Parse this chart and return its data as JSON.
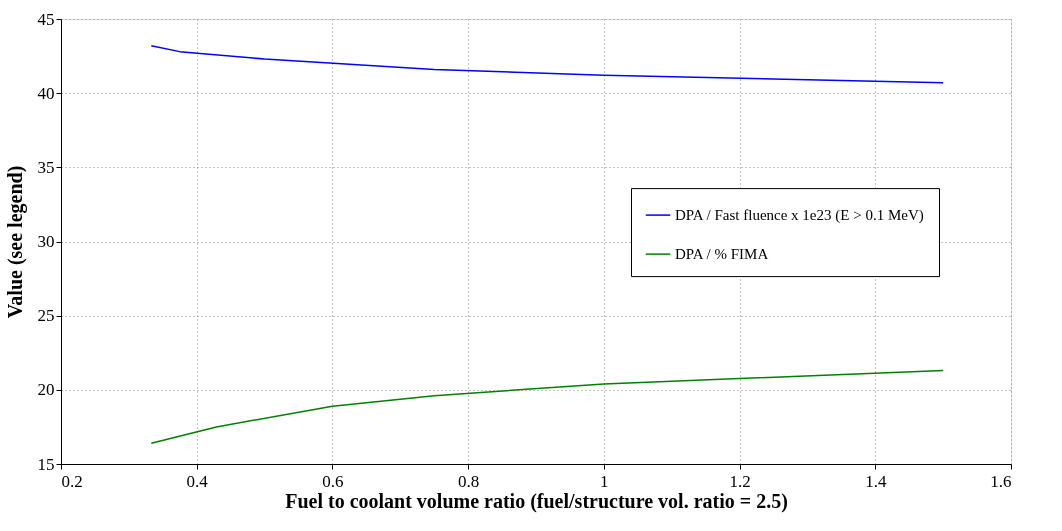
{
  "chart_data": {
    "type": "line",
    "xlabel": "Fuel to coolant volume ratio (fuel/structure vol. ratio = 2.5)",
    "ylabel": "Value (see legend)",
    "xlim": [
      0.2,
      1.6
    ],
    "xticks": [
      0.2,
      0.4,
      0.6,
      0.8,
      1,
      1.2,
      1.4,
      1.6
    ],
    "ylim": [
      15,
      45
    ],
    "yticks": [
      15,
      20,
      25,
      30,
      35,
      40,
      45
    ],
    "grid": true,
    "legend": "right",
    "line_style": "solid",
    "marker": "none",
    "series": [
      {
        "name": "DPA / Fast fluence x 1e23 (E > 0.1 MeV)",
        "color": "#0000ff",
        "x": [
          0.333,
          0.375,
          0.5,
          0.75,
          1.0,
          1.5
        ],
        "values": [
          43.2,
          42.8,
          42.3,
          41.6,
          41.2,
          40.7
        ]
      },
      {
        "name": "DPA / % FIMA",
        "color": "#008000",
        "x": [
          0.333,
          0.429,
          0.6,
          0.75,
          1.0,
          1.5
        ],
        "values": [
          16.4,
          17.5,
          18.9,
          19.6,
          20.4,
          21.3
        ]
      }
    ]
  }
}
